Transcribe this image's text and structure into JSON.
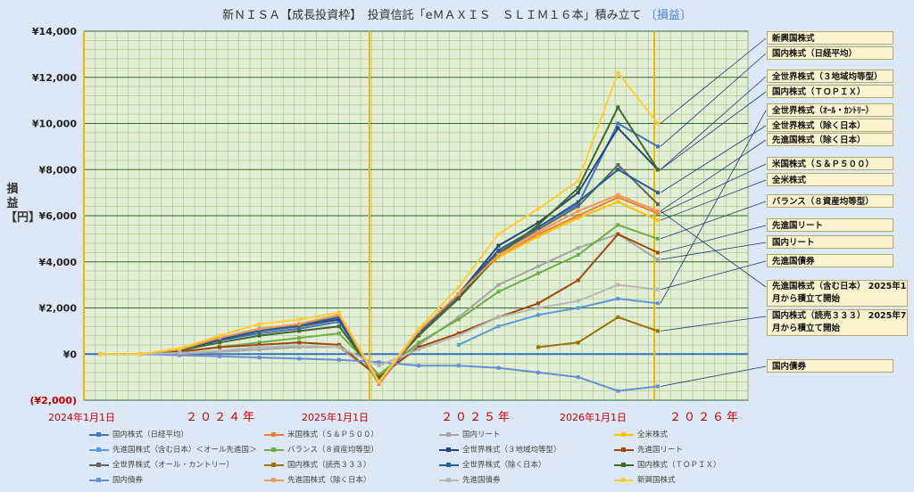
{
  "title": {
    "main": "新ＮＩＳＡ【成長投資枠】　投資信託「eＭＡＸＩＳ　ＳＬＩＭ１６本」積み立て",
    "accent": "〔損益〕"
  },
  "chart_data": {
    "type": "line",
    "ylabel": "損益【円】",
    "ylim": [
      -2000,
      14000
    ],
    "yticks": [
      "¥14,000",
      "¥12,000",
      "¥10,000",
      "¥8,000",
      "¥6,000",
      "¥4,000",
      "¥2,000",
      "¥0",
      "(¥2,000)"
    ],
    "x_range": [
      "2024-01-01",
      "2026-05-01"
    ],
    "date_labels": [
      "2024年1月1日",
      "2025年1月1日",
      "2026年1月1日"
    ],
    "year_labels": [
      "２０２４年",
      "２０２５年",
      "２０２６年"
    ],
    "grid": true,
    "series": [
      {
        "name": "国内株式（日経平均）",
        "color": "#4472c4",
        "values": [
          0,
          0,
          150,
          600,
          900,
          1100,
          1400,
          -1200,
          900,
          2500,
          4500,
          5500,
          6500,
          10000,
          9000
        ]
      },
      {
        "name": "米国株式（Ｓ＆Ｐ５００）",
        "color": "#ed7d31",
        "values": [
          0,
          0,
          200,
          700,
          1100,
          1300,
          1700,
          -1300,
          1000,
          2600,
          4200,
          5200,
          6000,
          6800,
          6100
        ]
      },
      {
        "name": "国内リート",
        "color": "#a5a5a5",
        "values": [
          0,
          0,
          0,
          100,
          200,
          300,
          300,
          -1000,
          400,
          1600,
          3000,
          3800,
          4600,
          5200,
          4100
        ]
      },
      {
        "name": "全米株式",
        "color": "#ffc000",
        "values": [
          0,
          0,
          200,
          700,
          1100,
          1300,
          1700,
          -1300,
          1000,
          2600,
          4200,
          5100,
          5900,
          6600,
          5800
        ]
      },
      {
        "name": "先進国株式（含む日本）＜オール先進国＞",
        "color": "#5b9bd5",
        "values": [
          null,
          null,
          null,
          null,
          null,
          null,
          null,
          null,
          null,
          400,
          1200,
          1700,
          2000,
          2400,
          2200
        ]
      },
      {
        "name": "バランス（８資産均等型）",
        "color": "#70ad47",
        "values": [
          0,
          0,
          100,
          300,
          500,
          700,
          900,
          -900,
          500,
          1500,
          2700,
          3500,
          4300,
          5600,
          5000
        ]
      },
      {
        "name": "全世界株式（３地域均等型）",
        "color": "#264478",
        "values": [
          0,
          0,
          200,
          600,
          1000,
          1200,
          1500,
          -1300,
          900,
          2600,
          4700,
          5700,
          7000,
          9800,
          8000
        ]
      },
      {
        "name": "先進国リート",
        "color": "#9e480e",
        "values": [
          0,
          0,
          100,
          300,
          400,
          500,
          400,
          -1000,
          300,
          900,
          1600,
          2200,
          3200,
          5200,
          4400
        ]
      },
      {
        "name": "全世界株式（オール・カントリー）",
        "color": "#636363",
        "values": [
          0,
          0,
          200,
          650,
          1000,
          1200,
          1600,
          -1300,
          900,
          2500,
          4400,
          5400,
          6400,
          8200,
          6500
        ]
      },
      {
        "name": "国内株式（読売３３３）",
        "color": "#997300",
        "values": [
          null,
          null,
          null,
          null,
          null,
          null,
          null,
          null,
          null,
          null,
          null,
          300,
          500,
          1600,
          1000
        ]
      },
      {
        "name": "全世界株式（除く日本）",
        "color": "#255e91",
        "values": [
          0,
          0,
          200,
          650,
          1000,
          1250,
          1600,
          -1300,
          900,
          2600,
          4500,
          5500,
          6600,
          8000,
          7000
        ]
      },
      {
        "name": "国内株式（ＴＯＰＩＸ）",
        "color": "#43682b",
        "values": [
          0,
          0,
          150,
          500,
          800,
          1000,
          1200,
          -1100,
          800,
          2400,
          4300,
          5600,
          7200,
          10700,
          8000
        ]
      },
      {
        "name": "国内債券",
        "color": "#698ed0",
        "values": [
          0,
          0,
          -50,
          -100,
          -150,
          -200,
          -250,
          -350,
          -500,
          -500,
          -600,
          -800,
          -1000,
          -1600,
          -1400
        ]
      },
      {
        "name": "先進国株式（除く日本）",
        "color": "#f1975a",
        "values": [
          0,
          0,
          200,
          700,
          1100,
          1300,
          1700,
          -1300,
          1000,
          2600,
          4300,
          5300,
          6200,
          6900,
          6200
        ]
      },
      {
        "name": "先進国債券",
        "color": "#b7b7b7",
        "values": [
          0,
          0,
          50,
          150,
          300,
          350,
          300,
          -500,
          200,
          800,
          1600,
          2000,
          2300,
          3000,
          2800
        ]
      },
      {
        "name": "新興国株式",
        "color": "#ffcd33",
        "values": [
          0,
          0,
          250,
          800,
          1300,
          1500,
          1800,
          -1200,
          1100,
          2900,
          5200,
          6300,
          7500,
          12200,
          10000
        ]
      }
    ],
    "callouts": [
      "新興国株式",
      "国内株式（日経平均）",
      "全世界株式（３地域均等型）",
      "国内株式（ＴＯＰＩＸ）",
      "全世界株式（ｵｰﾙ・ｶﾝﾄﾘｰ）",
      "全世界株式（除く日本）",
      "先進国株式（除く日本）",
      "米国株式（Ｓ＆Ｐ５００）",
      "全米株式",
      "バランス（８資産均等型）",
      "先進国リート",
      "国内リート",
      "先進国債券",
      "先進国株式（含む日本）\n2025年1月から積立て開始",
      "国内株式（読売３３３）\n2025年7月から積立て開始",
      "国内債券"
    ]
  }
}
